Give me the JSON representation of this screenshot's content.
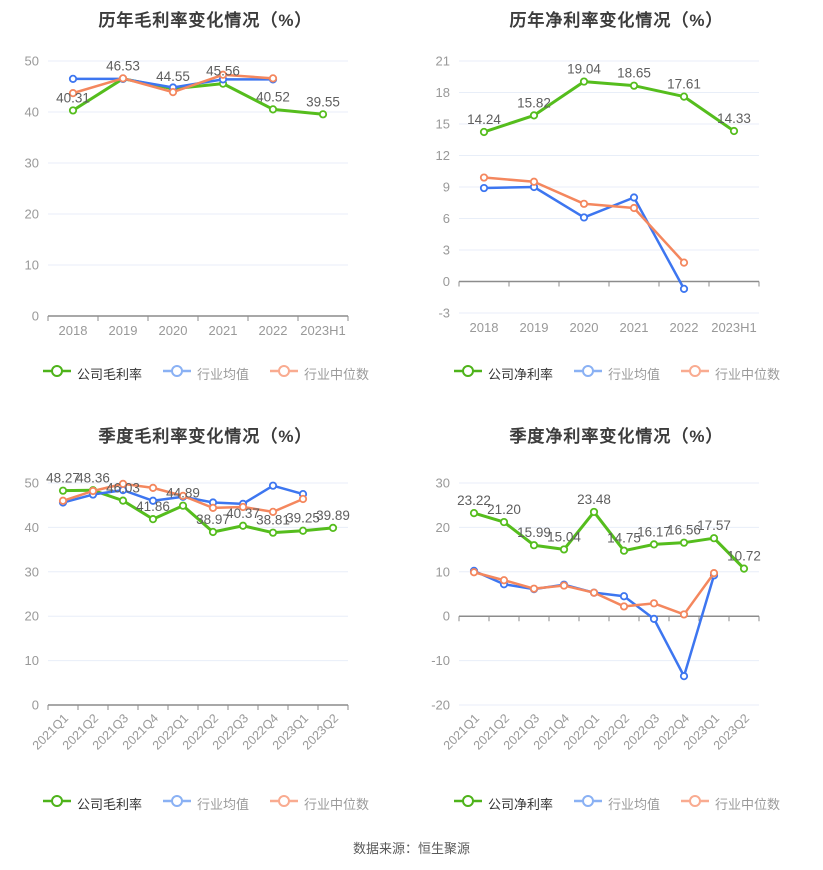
{
  "page": {
    "footer_text": "数据来源：恒生聚源"
  },
  "colors": {
    "company": "#55bd1d",
    "industry_avg": "#3d76f0",
    "industry_median": "#f4875e",
    "legend_company": "#4eb31a",
    "legend_avg": "#8ab1f4",
    "legend_median": "#f9ab90",
    "grid": "#e8eef8",
    "axis": "#8c8c8c",
    "tick_label": "#999999",
    "data_label": "#5e5e5e",
    "title": "#3c3c3c",
    "legend_text_primary": "#333333",
    "legend_text_secondary": "#9b9b9b"
  },
  "chart_data": [
    {
      "type": "line",
      "title": "历年毛利率变化情况（%）",
      "categories": [
        "2018",
        "2019",
        "2020",
        "2021",
        "2022",
        "2023H1"
      ],
      "ylim": [
        0,
        50
      ],
      "yticks": [
        0,
        10,
        20,
        30,
        40,
        50
      ],
      "x_labels_rotated": false,
      "grid": true,
      "legend_position": "bottom",
      "series": [
        {
          "name": "公司毛利率",
          "color_key": "company",
          "labeled": true,
          "values": [
            40.31,
            46.53,
            44.55,
            45.56,
            40.52,
            39.55
          ]
        },
        {
          "name": "行业均值",
          "color_key": "industry_avg",
          "labeled": false,
          "values": [
            46.5,
            46.5,
            44.8,
            46.4,
            46.4,
            null
          ]
        },
        {
          "name": "行业中位数",
          "color_key": "industry_median",
          "labeled": false,
          "values": [
            43.7,
            46.6,
            43.9,
            47.3,
            46.6,
            null
          ]
        }
      ],
      "legend": [
        {
          "label": "公司毛利率",
          "color_key": "legend_company",
          "text_key": "legend_text_primary"
        },
        {
          "label": "行业均值",
          "color_key": "legend_avg",
          "text_key": "legend_text_secondary"
        },
        {
          "label": "行业中位数",
          "color_key": "legend_median",
          "text_key": "legend_text_secondary"
        }
      ]
    },
    {
      "type": "line",
      "title": "历年净利率变化情况（%）",
      "categories": [
        "2018",
        "2019",
        "2020",
        "2021",
        "2022",
        "2023H1"
      ],
      "ylim": [
        -3,
        21
      ],
      "yticks": [
        -3,
        0,
        3,
        6,
        9,
        12,
        15,
        18,
        21
      ],
      "x_labels_rotated": false,
      "grid": true,
      "legend_position": "bottom",
      "series": [
        {
          "name": "公司净利率",
          "color_key": "company",
          "labeled": true,
          "values": [
            14.24,
            15.82,
            19.04,
            18.65,
            17.61,
            14.33
          ]
        },
        {
          "name": "行业均值",
          "color_key": "industry_avg",
          "labeled": false,
          "values": [
            8.9,
            9.0,
            6.1,
            8.0,
            -0.7,
            null
          ]
        },
        {
          "name": "行业中位数",
          "color_key": "industry_median",
          "labeled": false,
          "values": [
            9.9,
            9.5,
            7.4,
            7.0,
            1.8,
            null
          ]
        }
      ],
      "legend": [
        {
          "label": "公司净利率",
          "color_key": "legend_company",
          "text_key": "legend_text_primary"
        },
        {
          "label": "行业均值",
          "color_key": "legend_avg",
          "text_key": "legend_text_secondary"
        },
        {
          "label": "行业中位数",
          "color_key": "legend_median",
          "text_key": "legend_text_secondary"
        }
      ]
    },
    {
      "type": "line",
      "title": "季度毛利率变化情况（%）",
      "categories": [
        "2021Q1",
        "2021Q2",
        "2021Q3",
        "2021Q4",
        "2022Q1",
        "2022Q2",
        "2022Q3",
        "2022Q4",
        "2023Q1",
        "2023Q2"
      ],
      "ylim": [
        0,
        50
      ],
      "yticks": [
        0,
        10,
        20,
        30,
        40,
        50
      ],
      "x_labels_rotated": true,
      "grid": true,
      "legend_position": "bottom",
      "series": [
        {
          "name": "公司毛利率",
          "color_key": "company",
          "labeled": true,
          "values": [
            48.27,
            48.36,
            46.03,
            41.86,
            44.89,
            38.97,
            40.37,
            38.81,
            39.25,
            39.89
          ]
        },
        {
          "name": "行业均值",
          "color_key": "industry_avg",
          "labeled": false,
          "values": [
            45.6,
            47.4,
            48.4,
            46.0,
            46.9,
            45.6,
            45.3,
            49.4,
            47.5,
            null
          ]
        },
        {
          "name": "行业中位数",
          "color_key": "industry_median",
          "labeled": false,
          "values": [
            46.0,
            48.2,
            49.8,
            48.9,
            47.1,
            44.4,
            44.6,
            43.5,
            46.4,
            null
          ]
        }
      ],
      "legend": [
        {
          "label": "公司毛利率",
          "color_key": "legend_company",
          "text_key": "legend_text_primary"
        },
        {
          "label": "行业均值",
          "color_key": "legend_avg",
          "text_key": "legend_text_secondary"
        },
        {
          "label": "行业中位数",
          "color_key": "legend_median",
          "text_key": "legend_text_secondary"
        }
      ]
    },
    {
      "type": "line",
      "title": "季度净利率变化情况（%）",
      "categories": [
        "2021Q1",
        "2021Q2",
        "2021Q3",
        "2021Q4",
        "2022Q1",
        "2022Q2",
        "2022Q3",
        "2022Q4",
        "2023Q1",
        "2023Q2"
      ],
      "ylim": [
        -20,
        30
      ],
      "yticks": [
        -20,
        -10,
        0,
        10,
        20,
        30
      ],
      "x_labels_rotated": true,
      "grid": true,
      "legend_position": "bottom",
      "series": [
        {
          "name": "公司净利率",
          "color_key": "company",
          "labeled": true,
          "values": [
            23.22,
            21.2,
            15.99,
            15.04,
            23.48,
            14.75,
            16.17,
            16.56,
            17.57,
            10.72
          ]
        },
        {
          "name": "行业均值",
          "color_key": "industry_avg",
          "labeled": false,
          "values": [
            10.2,
            7.2,
            6.1,
            7.1,
            5.3,
            4.5,
            -0.6,
            -13.5,
            9.2,
            null
          ]
        },
        {
          "name": "行业中位数",
          "color_key": "industry_median",
          "labeled": false,
          "values": [
            9.9,
            8.1,
            6.2,
            6.9,
            5.3,
            2.2,
            2.9,
            0.4,
            9.7,
            null
          ]
        }
      ],
      "legend": [
        {
          "label": "公司净利率",
          "color_key": "legend_company",
          "text_key": "legend_text_primary"
        },
        {
          "label": "行业均值",
          "color_key": "legend_avg",
          "text_key": "legend_text_secondary"
        },
        {
          "label": "行业中位数",
          "color_key": "legend_median",
          "text_key": "legend_text_secondary"
        }
      ]
    }
  ]
}
